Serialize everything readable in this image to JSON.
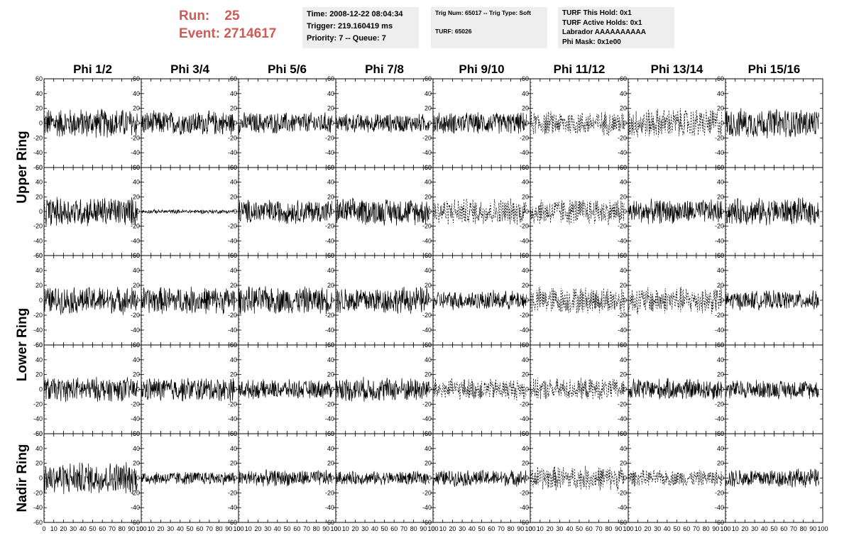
{
  "header": {
    "run_label": "Run:",
    "run_value": "25",
    "event_label": "Event:",
    "event_value": "2714617"
  },
  "info_box_1": {
    "line1": "Time: 2008-12-22 08:04:34",
    "line2": "Trigger: 219.160419 ms",
    "line3": "Priority: 7 -- Queue: 7"
  },
  "info_box_2": {
    "line1": "Trig Num: 65017 -- Trig Type: Soft",
    "line2": "TURF: 65026"
  },
  "info_box_3": {
    "line1": "TURF This Hold: 0x1",
    "line2": "TURF Active Holds: 0x1",
    "line3": "Labrador AAAAAAAAAA",
    "line4": "Phi Mask: 0x1e00"
  },
  "chart_data": {
    "type": "line",
    "grid_layout": "5 rows x 8 columns of waveform panels",
    "columns": [
      "Phi 1/2",
      "Phi 3/4",
      "Phi 5/6",
      "Phi 7/8",
      "Phi 9/10",
      "Phi 11/12",
      "Phi 13/14",
      "Phi 15/16"
    ],
    "ring_labels": [
      "Upper Ring",
      "Lower Ring",
      "Nadir Ring"
    ],
    "ring_rows": [
      [
        0,
        1
      ],
      [
        2,
        3
      ],
      [
        4,
        4
      ]
    ],
    "xlim": [
      0,
      100
    ],
    "ylim": [
      -60,
      60
    ],
    "yticks": [
      -60,
      -40,
      -20,
      0,
      20,
      40,
      60
    ],
    "xticks": [
      0,
      10,
      20,
      30,
      40,
      50,
      60,
      70,
      80,
      90,
      100
    ],
    "xtick_labels_bottom": "0 10203040506070809010",
    "grid": false,
    "approx_amplitude": [
      [
        22,
        18,
        16,
        14,
        16,
        18,
        22,
        22
      ],
      [
        22,
        3,
        18,
        20,
        20,
        20,
        18,
        20
      ],
      [
        20,
        20,
        20,
        20,
        14,
        20,
        20,
        14
      ],
      [
        18,
        18,
        14,
        18,
        16,
        16,
        16,
        14
      ],
      [
        24,
        10,
        12,
        10,
        12,
        18,
        12,
        14
      ]
    ],
    "dashed_panels": [
      [
        0,
        5
      ],
      [
        0,
        6
      ],
      [
        1,
        4
      ],
      [
        1,
        5
      ],
      [
        2,
        5
      ],
      [
        2,
        6
      ],
      [
        3,
        4
      ],
      [
        3,
        5
      ],
      [
        4,
        5
      ],
      [
        4,
        6
      ]
    ]
  }
}
